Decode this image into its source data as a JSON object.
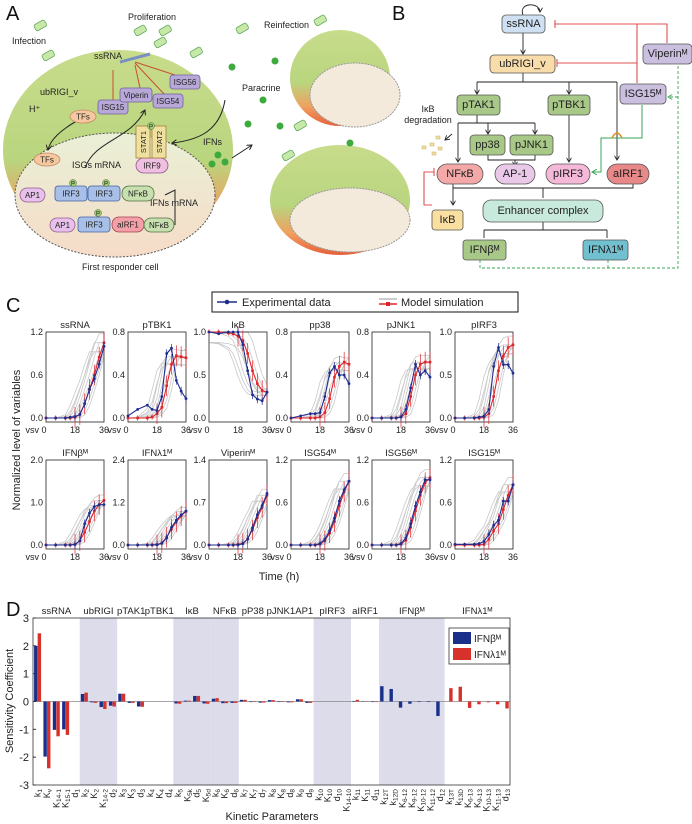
{
  "panel_letters": {
    "a": "A",
    "b": "B",
    "c": "C",
    "d": "D"
  },
  "panel_a": {
    "infection": "Infection",
    "proliferation": "Proliferation",
    "reinfection": "Reinfection",
    "paracrine": "Paracrine",
    "ssrna": "ssRNA",
    "ubrigi": "ubRIGI_v",
    "h_plus": "H⁺",
    "tfs_cyto": "TFs",
    "tfs_nuc": "TFs",
    "isg15": "ISG15",
    "viperin": "Viperin",
    "isg54": "ISG54",
    "isg56": "ISG56",
    "stat1": "STAT1",
    "stat2": "STAT2",
    "irf9": "IRF9",
    "isgs_mrna": "ISGs mRNA",
    "ifns": "IFNs",
    "ifns_mrna": "IFNs mRNA",
    "ap1_a": "AP1",
    "irf3_a": "IRF3",
    "irf3_b": "IRF3",
    "nfkb_a": "NFκB",
    "ap1_b": "AP1",
    "irf3_c": "IRF3",
    "airf1": "aIRF1",
    "nfkb_b": "NFκB",
    "p": "P",
    "caption": "First responder cell"
  },
  "panel_b": {
    "ssrna": "ssRNA",
    "ubrigi": "ubRIGI_v",
    "ptak1": "pTAK1",
    "ptbk1": "pTBK1",
    "isg15": "ISG15ᴹ",
    "viperin": "Viperinᴹ",
    "pp38": "pp38",
    "pjnk1": "pJNK1",
    "nfkb": "NFκB",
    "ap1": "AP-1",
    "pirf3": "pIRF3",
    "airf1": "aIRF1",
    "enhancer": "Enhancer complex",
    "ikb": "IκB",
    "ifnb": "IFNβᴹ",
    "ifnl": "IFNλ1ᴹ",
    "ikb_deg_1": "IκB",
    "ikb_deg_2": "degradation"
  },
  "chart_data": [
    {
      "type": "line",
      "panel": "C",
      "legend": {
        "experimental": "Experimental data",
        "model": "Model simulation",
        "placement": "top-center"
      },
      "xlabel": "Time (h)",
      "ylabel": "Normalized level of variables",
      "x": [
        0,
        6,
        12,
        15,
        18,
        21,
        24,
        27,
        30,
        33,
        36
      ],
      "xticks": [
        "vsv 0",
        "18",
        "36"
      ],
      "colors": {
        "experimental": "#1f2d8f",
        "model": "#e0242a",
        "simulation": "#c8c8c8"
      },
      "subplots": [
        {
          "title": "ssRNA",
          "ylim": [
            0,
            1.2
          ],
          "yticks": [
            "0.0",
            "0.6",
            "1.2"
          ],
          "experimental": [
            0,
            0,
            0,
            0.01,
            0.02,
            0.05,
            0.2,
            0.4,
            0.55,
            0.75,
            1.0
          ],
          "model": [
            0,
            0,
            0,
            0,
            0.01,
            0.05,
            0.2,
            0.4,
            0.6,
            0.85,
            1.05
          ]
        },
        {
          "title": "pTBK1",
          "ylim": [
            0,
            0.8
          ],
          "yticks": [
            "0.0",
            "0.4",
            "0.8"
          ],
          "experimental": [
            0.02,
            0.08,
            0.12,
            0.08,
            0.07,
            0.2,
            0.6,
            0.65,
            0.35,
            0.25,
            0.18
          ],
          "model": [
            0,
            0,
            0,
            0.01,
            0.04,
            0.1,
            0.3,
            0.5,
            0.58,
            0.57,
            0.56
          ]
        },
        {
          "title": "IκB",
          "ylim": [
            0,
            1.0
          ],
          "yticks": [
            "0.0",
            "0.5",
            "1.0"
          ],
          "experimental": [
            1,
            0.98,
            1,
            1,
            1,
            0.85,
            0.55,
            0.27,
            0.22,
            0.2,
            0.3
          ],
          "model": [
            1,
            1,
            0.99,
            0.98,
            0.95,
            0.9,
            0.75,
            0.55,
            0.4,
            0.32,
            0.3
          ]
        },
        {
          "title": "pp38",
          "ylim": [
            0,
            0.8
          ],
          "yticks": [
            "0.0",
            "0.4",
            "0.8"
          ],
          "experimental": [
            0,
            0.02,
            0.04,
            0.04,
            0.05,
            0.2,
            0.42,
            0.48,
            0.4,
            0.4,
            0.32
          ],
          "model": [
            0,
            0,
            0,
            0,
            0.01,
            0.05,
            0.18,
            0.38,
            0.48,
            0.52,
            0.5
          ]
        },
        {
          "title": "pJNK1",
          "ylim": [
            0,
            0.8
          ],
          "yticks": [
            "0.0",
            "0.4",
            "0.8"
          ],
          "experimental": [
            0,
            0,
            0,
            0,
            0.01,
            0.08,
            0.28,
            0.5,
            0.4,
            0.44,
            0.38
          ],
          "model": [
            0,
            0,
            0,
            0,
            0.01,
            0.04,
            0.2,
            0.4,
            0.5,
            0.52,
            0.52
          ]
        },
        {
          "title": "pIRF3",
          "ylim": [
            0,
            1.0
          ],
          "yticks": [
            "0.0",
            "0.5",
            "1.0"
          ],
          "experimental": [
            0,
            0,
            0,
            0.01,
            0.02,
            0.1,
            0.6,
            0.82,
            0.62,
            0.62,
            0.52
          ],
          "model": [
            0,
            0,
            0,
            0,
            0.01,
            0.05,
            0.25,
            0.55,
            0.72,
            0.82,
            0.85
          ]
        },
        {
          "title": "IFNβᴹ",
          "ylim": [
            0,
            2.0
          ],
          "yticks": [
            "0.0",
            "1.0",
            "2.0"
          ],
          "experimental": [
            0,
            0,
            0,
            0,
            0.01,
            0.1,
            0.5,
            0.75,
            0.9,
            0.95,
            0.95
          ],
          "model": [
            0,
            0,
            0,
            0,
            0.02,
            0.1,
            0.3,
            0.55,
            0.8,
            0.95,
            1.05
          ]
        },
        {
          "title": "IFNλ1ᴹ",
          "ylim": [
            0,
            2.4
          ],
          "yticks": [
            "0.0",
            "1.2",
            "2.4"
          ],
          "experimental": [
            0,
            0,
            0,
            0,
            0.01,
            0.05,
            0.2,
            0.5,
            0.7,
            0.85,
            0.96
          ],
          "model": [
            0,
            0,
            0,
            0,
            0.01,
            0.06,
            0.22,
            0.45,
            0.65,
            0.82,
            0.95
          ]
        },
        {
          "title": "Viperinᴹ",
          "ylim": [
            0,
            1.4
          ],
          "yticks": [
            "0.0",
            "0.7",
            "1.4"
          ],
          "experimental": [
            0,
            0,
            0,
            0,
            0,
            0.02,
            0.1,
            0.28,
            0.5,
            0.65,
            0.85
          ],
          "model": [
            0,
            0,
            0,
            0,
            0.01,
            0.03,
            0.1,
            0.25,
            0.45,
            0.62,
            0.82
          ]
        },
        {
          "title": "ISG54ᴹ",
          "ylim": [
            0,
            1.2
          ],
          "yticks": [
            "0.0",
            "0.6",
            "1.2"
          ],
          "experimental": [
            0,
            0,
            0,
            0,
            0.02,
            0.08,
            0.2,
            0.38,
            0.62,
            0.78,
            0.9
          ],
          "model": [
            0,
            0,
            0,
            0,
            0.01,
            0.06,
            0.17,
            0.33,
            0.55,
            0.75,
            0.9
          ]
        },
        {
          "title": "ISG56ᴹ",
          "ylim": [
            0,
            1.2
          ],
          "yticks": [
            "0.0",
            "0.6",
            "1.2"
          ],
          "experimental": [
            0,
            0,
            0,
            0,
            0.02,
            0.1,
            0.3,
            0.55,
            0.75,
            0.92,
            0.92
          ],
          "model": [
            0,
            0,
            0,
            0,
            0.01,
            0.07,
            0.25,
            0.48,
            0.7,
            0.88,
            0.95
          ]
        },
        {
          "title": "ISG15ᴹ",
          "ylim": [
            0,
            1.2
          ],
          "yticks": [
            "0.0",
            "0.6",
            "1.2"
          ],
          "experimental": [
            0.01,
            0.01,
            0.01,
            0.02,
            0.05,
            0.15,
            0.28,
            0.35,
            0.62,
            0.62,
            0.85
          ],
          "model": [
            0,
            0,
            0,
            0,
            0.01,
            0.08,
            0.2,
            0.3,
            0.5,
            0.7,
            0.85
          ]
        }
      ]
    },
    {
      "type": "bar",
      "panel": "D",
      "xlabel": "Kinetic Parameters",
      "ylabel": "Sensitivity Coefficient",
      "ylim": [
        -3,
        3
      ],
      "yticks": [
        "3",
        "2",
        "1",
        "0",
        "-1",
        "-2",
        "-3"
      ],
      "legend": {
        "placement": "top-right"
      },
      "series": [
        {
          "name": "IFNβᴹ",
          "color": "#1a2f8a",
          "values": [
            2.0,
            -1.98,
            -1.02,
            -1.0,
            0,
            0.27,
            -0.03,
            -0.2,
            -0.15,
            0.28,
            -0.05,
            -0.18,
            0,
            0,
            0,
            -0.07,
            0.03,
            0.2,
            -0.07,
            0.1,
            -0.06,
            -0.05,
            0.06,
            -0.02,
            -0.04,
            0.05,
            -0.02,
            -0.03,
            0.08,
            -0.05,
            0,
            0,
            0,
            0,
            0.02,
            -0.01,
            -0.02,
            0.55,
            0.45,
            -0.22,
            -0.08,
            -0.02,
            -0.02,
            -0.52,
            0,
            0,
            0,
            0,
            0,
            0,
            0
          ]
        },
        {
          "name": "IFNλ1ᴹ",
          "color": "#d6312a",
          "values": [
            2.45,
            -2.4,
            -1.25,
            -1.2,
            0,
            0.32,
            -0.05,
            -0.27,
            -0.18,
            0.28,
            -0.05,
            -0.19,
            0,
            0,
            0,
            -0.08,
            0.03,
            0.2,
            -0.08,
            0.12,
            -0.06,
            -0.05,
            0.06,
            -0.02,
            -0.04,
            0.05,
            -0.02,
            -0.03,
            0.08,
            -0.05,
            0,
            0,
            0,
            0,
            0.06,
            -0.01,
            -0.02,
            0,
            0,
            0,
            0,
            0,
            0,
            0,
            0.48,
            0.53,
            -0.23,
            -0.1,
            -0.03,
            -0.1,
            -0.25
          ]
        }
      ],
      "categories": [
        "k1",
        "Kv",
        "K14-1",
        "K15-1",
        "d1",
        "k2",
        "K2",
        "K14-2",
        "d2",
        "k3",
        "K3",
        "d3",
        "k4",
        "K4",
        "d4",
        "k5",
        "K5k",
        "d5",
        "K5d",
        "k6",
        "K6",
        "d6",
        "k7",
        "K7",
        "d7",
        "k8",
        "K8",
        "d8",
        "k9",
        "d9",
        "k10",
        "K10",
        "d10",
        "K14-10",
        "k11",
        "K11",
        "d11",
        "k12T",
        "k12D",
        "K6-12",
        "K9-12",
        "K10-12",
        "K11-12",
        "d12",
        "k13T",
        "k13D",
        "K6-13",
        "K9-13",
        "K10-13",
        "K11-13",
        "d13"
      ],
      "groups": [
        {
          "label": "ssRNA",
          "count": 5,
          "shaded": false
        },
        {
          "label": "ubRIGI",
          "count": 4,
          "shaded": true
        },
        {
          "label": "pTAK1",
          "count": 3,
          "shaded": false
        },
        {
          "label": "pTBK1",
          "count": 3,
          "shaded": false
        },
        {
          "label": "IκB",
          "count": 4,
          "shaded": true
        },
        {
          "label": "NFκB",
          "count": 3,
          "shaded": true
        },
        {
          "label": "pP38",
          "count": 3,
          "shaded": false
        },
        {
          "label": "pJNK1",
          "count": 3,
          "shaded": false
        },
        {
          "label": "AP1",
          "count": 2,
          "shaded": false
        },
        {
          "label": "pIRF3",
          "count": 4,
          "shaded": true
        },
        {
          "label": "aIRF1",
          "count": 3,
          "shaded": false
        },
        {
          "label": "IFNβᴹ",
          "count": 7,
          "shaded": true
        },
        {
          "label": "IFNλ1ᴹ",
          "count": 7,
          "shaded": false
        }
      ],
      "shade_color": "#dcdcea"
    }
  ]
}
